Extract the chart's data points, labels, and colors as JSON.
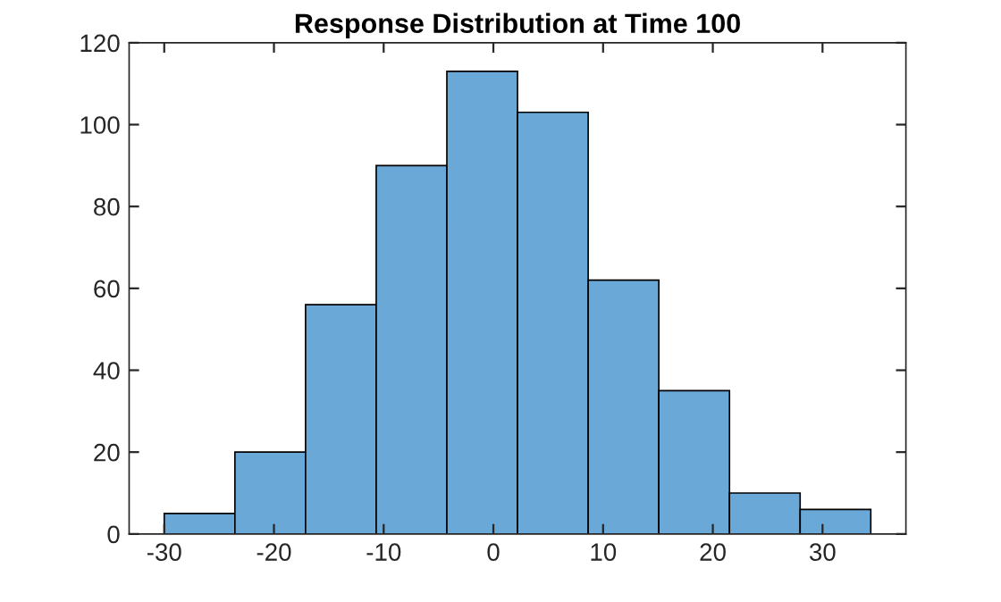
{
  "chart_data": {
    "type": "histogram",
    "title": "Response Distribution at Time 100",
    "bins": [
      -30,
      -23.56,
      -17.12,
      -10.68,
      -4.24,
      2.2,
      8.64,
      15.08,
      21.52,
      27.96,
      34.4
    ],
    "values": [
      5,
      20,
      56,
      90,
      113,
      103,
      62,
      35,
      10,
      6
    ],
    "color": "#6aa8d8",
    "xlim": [
      -33.2,
      37.6
    ],
    "xticks": [
      -30,
      -20,
      -10,
      0,
      10,
      20,
      30
    ],
    "ylim": [
      0,
      120
    ],
    "yticks": [
      0,
      20,
      40,
      60,
      80,
      100,
      120
    ],
    "grid": false
  }
}
